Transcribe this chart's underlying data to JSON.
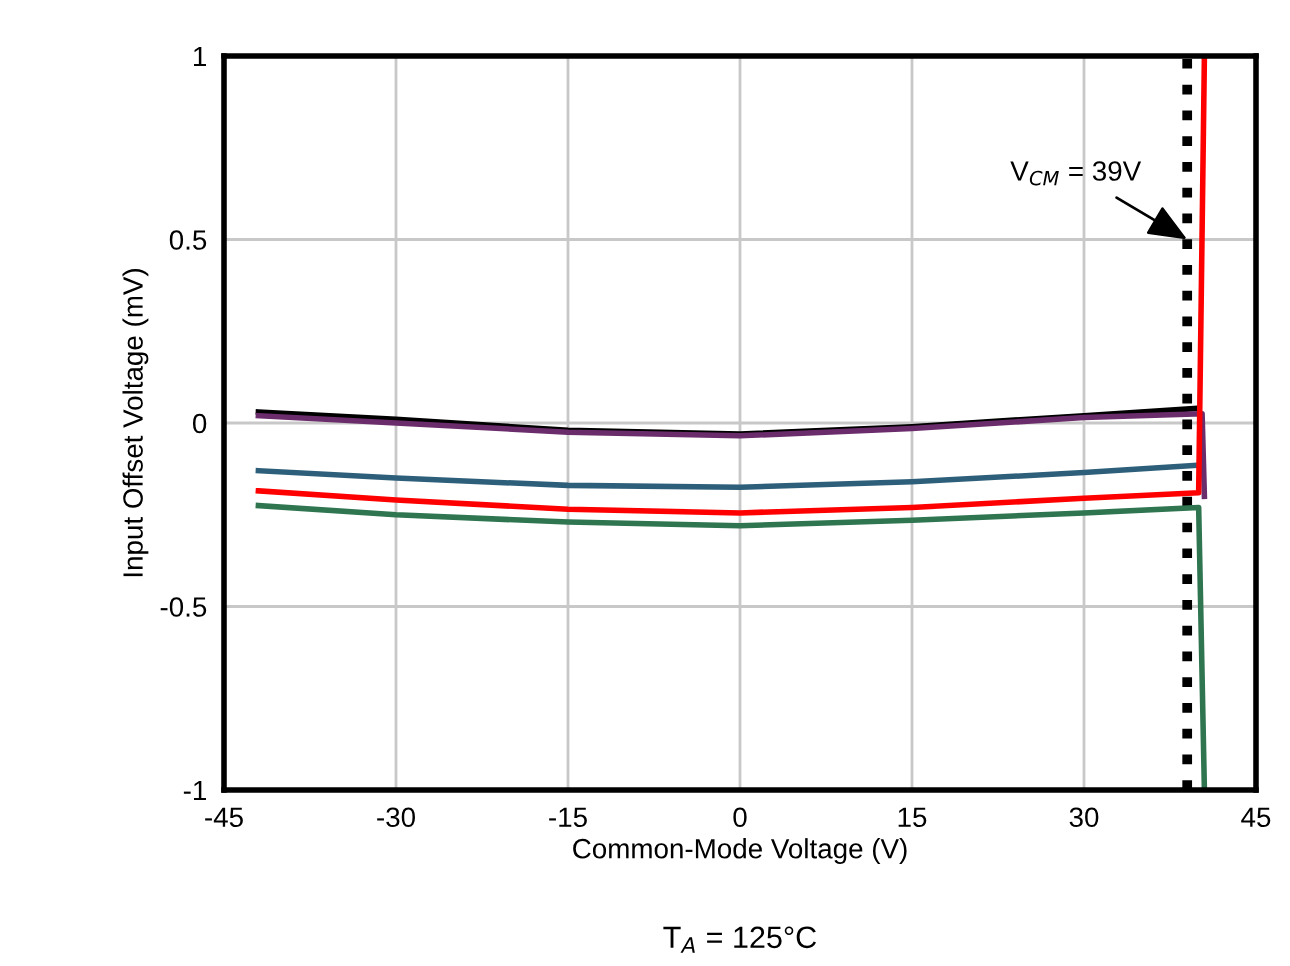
{
  "chart_data": {
    "type": "line",
    "xlabel": "Common-Mode Voltage (V)",
    "ylabel": "Input Offset Voltage (mV)",
    "xlim": [
      -45,
      45
    ],
    "xticks": [
      -45,
      -30,
      -15,
      0,
      15,
      30,
      45
    ],
    "ylim": [
      -1,
      1
    ],
    "yticks": [
      -1,
      -0.5,
      0,
      0.5,
      1
    ],
    "grid": true,
    "series": [
      {
        "color": "#000000",
        "x": [
          -42,
          -30,
          -15,
          0,
          15,
          30,
          40
        ],
        "values": [
          0.03,
          0.01,
          -0.02,
          -0.03,
          -0.01,
          0.02,
          0.04
        ]
      },
      {
        "color": "#6b2c6b",
        "x": [
          -42,
          -30,
          -15,
          0,
          15,
          30,
          40.3,
          40.5
        ],
        "values": [
          0.02,
          0.0,
          -0.025,
          -0.035,
          -0.015,
          0.015,
          0.025,
          -0.2
        ]
      },
      {
        "color": "#2e5f7a",
        "x": [
          -42,
          -30,
          -15,
          0,
          15,
          30,
          40
        ],
        "values": [
          -0.13,
          -0.15,
          -0.17,
          -0.175,
          -0.16,
          -0.135,
          -0.115
        ]
      },
      {
        "color": "#ff0000",
        "x": [
          -42,
          -30,
          -15,
          0,
          15,
          30,
          40,
          40.5
        ],
        "values": [
          -0.185,
          -0.21,
          -0.235,
          -0.245,
          -0.23,
          -0.205,
          -0.19,
          1
        ]
      },
      {
        "color": "#2e7550",
        "x": [
          -42,
          -30,
          -15,
          0,
          15,
          30,
          40,
          40.5
        ],
        "values": [
          -0.225,
          -0.25,
          -0.27,
          -0.28,
          -0.265,
          -0.245,
          -0.23,
          -1
        ]
      }
    ],
    "ref_lines": [
      {
        "axis": "x",
        "value": 39,
        "color": "#000000",
        "line_style": "dotted"
      }
    ],
    "annotations": [
      {
        "text": "V$_{CM}$ = 39V",
        "x": 39,
        "y": 0.5
      },
      "T$_{A}$ = 125°C"
    ]
  }
}
